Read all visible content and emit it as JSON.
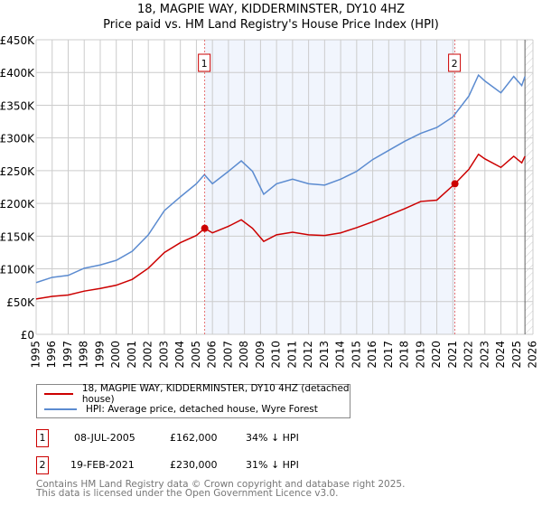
{
  "title": "18, MAGPIE WAY, KIDDERMINSTER, DY10 4HZ",
  "subtitle": "Price paid vs. HM Land Registry's House Price Index (HPI)",
  "chart_data": {
    "type": "line",
    "ylim": [
      0,
      450000
    ],
    "xlim": [
      1995,
      2026
    ],
    "yticks": [
      {
        "v": 0,
        "l": "£0"
      },
      {
        "v": 50000,
        "l": "£50K"
      },
      {
        "v": 100000,
        "l": "£100K"
      },
      {
        "v": 150000,
        "l": "£150K"
      },
      {
        "v": 200000,
        "l": "£200K"
      },
      {
        "v": 250000,
        "l": "£250K"
      },
      {
        "v": 300000,
        "l": "£300K"
      },
      {
        "v": 350000,
        "l": "£350K"
      },
      {
        "v": 400000,
        "l": "£400K"
      },
      {
        "v": 450000,
        "l": "£450K"
      }
    ],
    "xticks": [
      "1995",
      "1996",
      "1997",
      "1998",
      "1999",
      "2000",
      "2001",
      "2002",
      "2003",
      "2004",
      "2005",
      "2006",
      "2007",
      "2008",
      "2009",
      "2010",
      "2011",
      "2012",
      "2013",
      "2014",
      "2015",
      "2016",
      "2017",
      "2018",
      "2019",
      "2020",
      "2021",
      "2022",
      "2023",
      "2024",
      "2025",
      "2026"
    ],
    "series": [
      {
        "name": "HPI: Average price, detached house, Wyre Forest",
        "color": "#5b8bd0",
        "x": [
          1995,
          1996,
          1997,
          1998,
          1999,
          2000,
          2001,
          2002,
          2003,
          2004,
          2005,
          2005.5,
          2006,
          2007,
          2007.8,
          2008.5,
          2009.2,
          2010,
          2011,
          2012,
          2013,
          2014,
          2015,
          2016,
          2017,
          2018,
          2019,
          2020,
          2021,
          2022,
          2022.6,
          2023,
          2024,
          2024.8,
          2025.3,
          2025.5
        ],
        "y": [
          79000,
          87000,
          90000,
          101000,
          106000,
          113000,
          127000,
          152000,
          189000,
          210000,
          230000,
          244000,
          230000,
          249000,
          265000,
          249000,
          214000,
          230000,
          237000,
          230000,
          228000,
          237000,
          249000,
          267000,
          281000,
          295000,
          307000,
          316000,
          332000,
          364000,
          396000,
          387000,
          369000,
          394000,
          380000,
          394000
        ]
      },
      {
        "name": "18, MAGPIE WAY, KIDDERMINSTER, DY10 4HZ (detached house)",
        "color": "#cc0000",
        "x": [
          1995,
          1996,
          1997,
          1998,
          1999,
          2000,
          2001,
          2002,
          2003,
          2004,
          2005,
          2005.52,
          2006,
          2007,
          2007.8,
          2008.5,
          2009.2,
          2010,
          2011,
          2012,
          2013,
          2014,
          2015,
          2016,
          2017,
          2018,
          2019,
          2020,
          2021.13,
          2022,
          2022.6,
          2023,
          2024,
          2024.8,
          2025.3,
          2025.5
        ],
        "y": [
          54000,
          58000,
          60000,
          66000,
          70000,
          75000,
          84000,
          101000,
          125000,
          140000,
          151000,
          162000,
          155000,
          165000,
          175000,
          162000,
          142000,
          152000,
          156000,
          152000,
          151000,
          155000,
          163000,
          172000,
          182000,
          192000,
          203000,
          205000,
          230000,
          252000,
          275000,
          268000,
          255000,
          272000,
          262000,
          272000
        ]
      }
    ],
    "sales": [
      {
        "label": "1",
        "x": 2005.52,
        "y": 162000
      },
      {
        "label": "2",
        "x": 2021.13,
        "y": 230000
      }
    ]
  },
  "legend": {
    "property": "18, MAGPIE WAY, KIDDERMINSTER, DY10 4HZ (detached house)",
    "hpi": "HPI: Average price, detached house, Wyre Forest"
  },
  "colors": {
    "property": "#cc0000",
    "hpi": "#5b8bd0"
  },
  "table": [
    {
      "num": "1",
      "date": "08-JUL-2005",
      "price": "£162,000",
      "diff": "34% ↓ HPI"
    },
    {
      "num": "2",
      "date": "19-FEB-2021",
      "price": "£230,000",
      "diff": "31% ↓ HPI"
    }
  ],
  "footer": {
    "line1": "Contains HM Land Registry data © Crown copyright and database right 2025.",
    "line2": "This data is licensed under the Open Government Licence v3.0."
  }
}
